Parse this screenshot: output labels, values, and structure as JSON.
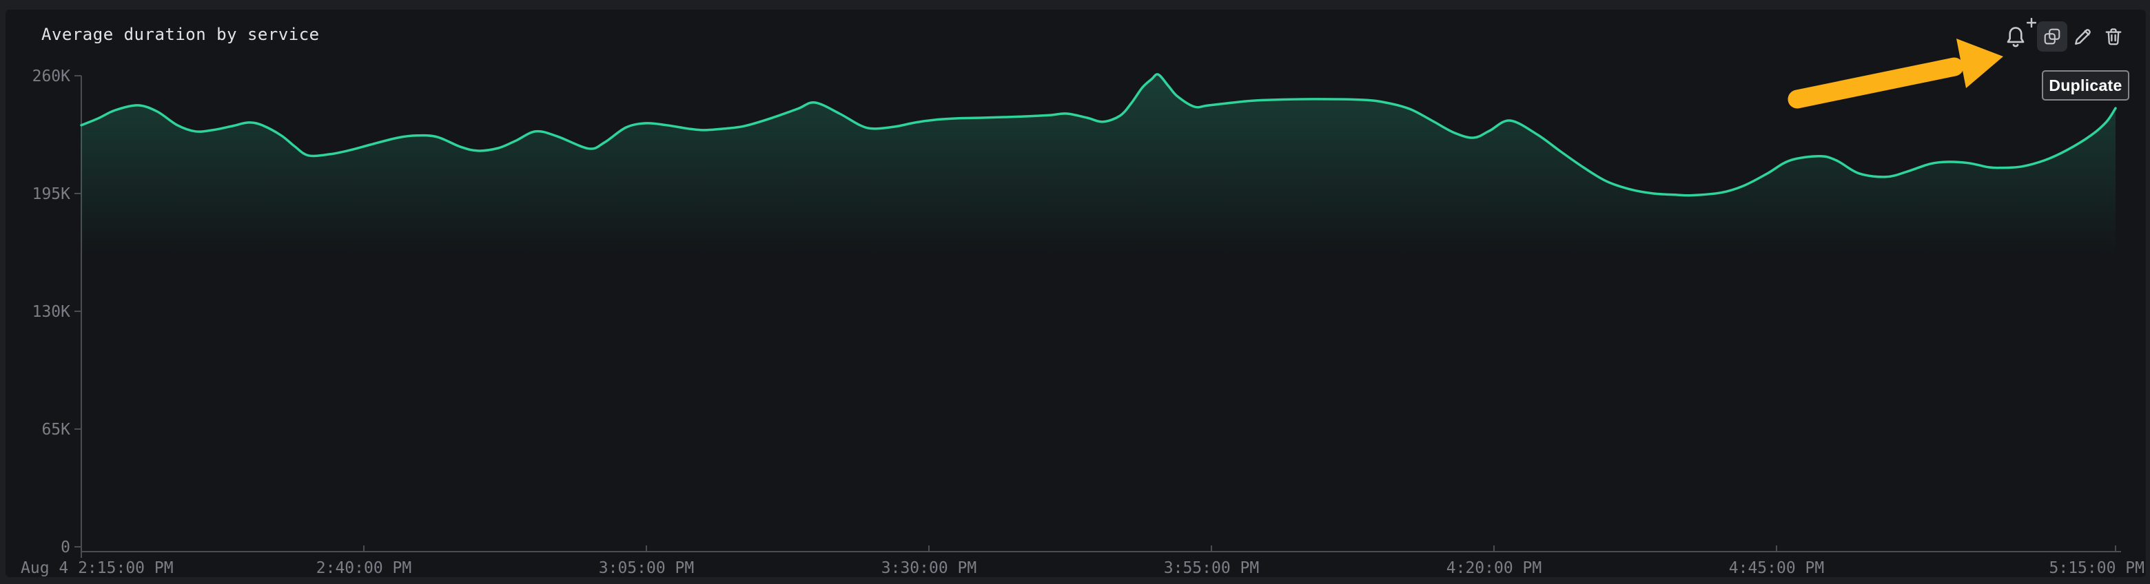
{
  "widget": {
    "title": "Average duration by service",
    "toolbar": {
      "buttons": [
        {
          "name": "add-alert",
          "icon": "bell-plus-icon"
        },
        {
          "name": "duplicate",
          "icon": "duplicate-icon",
          "hovered": true
        },
        {
          "name": "edit",
          "icon": "pencil-icon"
        },
        {
          "name": "delete",
          "icon": "trash-icon"
        }
      ]
    },
    "tooltip": {
      "label": "Duplicate"
    }
  },
  "annotation": {
    "type": "arrow",
    "color": "#fcb216",
    "points_at": "duplicate-button"
  },
  "colors": {
    "page_bg": "#1d1f23",
    "widget_bg": "#131519",
    "axis": "#4a4d53",
    "axis_label": "#7b7f85",
    "line": "#2fd49a",
    "title": "#e2e4e7",
    "icon": "#c6c8cb",
    "tooltip_bg": "#202226",
    "tooltip_border": "#85878a",
    "arrow": "#fcb216"
  },
  "chart_data": {
    "type": "line",
    "title": "Average duration by service",
    "xlabel": "",
    "ylabel": "",
    "grid": false,
    "legend": false,
    "x_unit": "minutes after Aug 4 2:15:00 PM",
    "xlim_minutes": [
      0,
      180
    ],
    "ylim": [
      0,
      260000
    ],
    "y_ticks": [
      {
        "v": 260000,
        "label": "260K"
      },
      {
        "v": 195000,
        "label": "195K"
      },
      {
        "v": 130000,
        "label": "130K"
      },
      {
        "v": 65000,
        "label": "65K"
      },
      {
        "v": 0,
        "label": "0"
      }
    ],
    "x_ticks": [
      {
        "t": 0,
        "label": "Aug 4 2:15:00 PM",
        "align": "left",
        "tick": false
      },
      {
        "t": 25,
        "label": "2:40:00 PM",
        "align": "center",
        "tick": true
      },
      {
        "t": 50,
        "label": "3:05:00 PM",
        "align": "center",
        "tick": true
      },
      {
        "t": 75,
        "label": "3:30:00 PM",
        "align": "center",
        "tick": true
      },
      {
        "t": 100,
        "label": "3:55:00 PM",
        "align": "center",
        "tick": true
      },
      {
        "t": 125,
        "label": "4:20:00 PM",
        "align": "center",
        "tick": true
      },
      {
        "t": 150,
        "label": "4:45:00 PM",
        "align": "center",
        "tick": true
      },
      {
        "t": 180,
        "label": "5:15:00 PM",
        "align": "right",
        "tick": true
      }
    ],
    "series": [
      {
        "name": "avg duration by service",
        "color": "#2fd49a",
        "points": [
          [
            0,
            232700
          ],
          [
            1.5,
            236500
          ],
          [
            3,
            241000
          ],
          [
            5,
            243700
          ],
          [
            6.7,
            240300
          ],
          [
            8.5,
            232700
          ],
          [
            10.1,
            229300
          ],
          [
            11.6,
            230000
          ],
          [
            13.4,
            232300
          ],
          [
            14.8,
            234200
          ],
          [
            16,
            232700
          ],
          [
            17.7,
            227000
          ],
          [
            18.9,
            220900
          ],
          [
            20.1,
            216000
          ],
          [
            22,
            216700
          ],
          [
            23.8,
            219000
          ],
          [
            25.6,
            222000
          ],
          [
            28,
            225800
          ],
          [
            29.7,
            227000
          ],
          [
            31.5,
            226200
          ],
          [
            33.5,
            220900
          ],
          [
            35.1,
            218600
          ],
          [
            36.9,
            220100
          ],
          [
            38.4,
            224000
          ],
          [
            40.2,
            229300
          ],
          [
            42.1,
            226600
          ],
          [
            44.9,
            219800
          ],
          [
            46.3,
            223200
          ],
          [
            48.2,
            231500
          ],
          [
            50,
            233800
          ],
          [
            51.8,
            232700
          ],
          [
            53.7,
            230800
          ],
          [
            55.1,
            230000
          ],
          [
            56.9,
            230800
          ],
          [
            58.7,
            232300
          ],
          [
            61,
            236500
          ],
          [
            63.4,
            241800
          ],
          [
            64.9,
            245200
          ],
          [
            67.1,
            239100
          ],
          [
            68.9,
            232700
          ],
          [
            70.1,
            230800
          ],
          [
            72,
            231900
          ],
          [
            73.8,
            234200
          ],
          [
            75.6,
            235700
          ],
          [
            77.6,
            236500
          ],
          [
            79.7,
            236800
          ],
          [
            81.7,
            237200
          ],
          [
            83.7,
            237600
          ],
          [
            85.8,
            238300
          ],
          [
            87.2,
            239100
          ],
          [
            89,
            236800
          ],
          [
            90.4,
            234600
          ],
          [
            91.9,
            237900
          ],
          [
            92.9,
            244800
          ],
          [
            93.9,
            253600
          ],
          [
            94.7,
            258100
          ],
          [
            95.3,
            260700
          ],
          [
            96.2,
            254300
          ],
          [
            97,
            248600
          ],
          [
            98.5,
            242900
          ],
          [
            99.8,
            243700
          ],
          [
            103.2,
            246000
          ],
          [
            105.3,
            246700
          ],
          [
            109.3,
            247100
          ],
          [
            113.4,
            246700
          ],
          [
            115.4,
            245200
          ],
          [
            117.5,
            241800
          ],
          [
            119.5,
            235300
          ],
          [
            121.5,
            228500
          ],
          [
            123.2,
            225800
          ],
          [
            124.6,
            229600
          ],
          [
            126.4,
            235300
          ],
          [
            128.8,
            227700
          ],
          [
            130.9,
            218200
          ],
          [
            132.9,
            209500
          ],
          [
            134.9,
            201900
          ],
          [
            137,
            197400
          ],
          [
            139,
            195100
          ],
          [
            141,
            194300
          ],
          [
            142.5,
            194000
          ],
          [
            145.1,
            195500
          ],
          [
            147.1,
            199300
          ],
          [
            149.2,
            206100
          ],
          [
            151.2,
            213300
          ],
          [
            153.8,
            215600
          ],
          [
            155.3,
            213300
          ],
          [
            157.3,
            206100
          ],
          [
            159.7,
            204200
          ],
          [
            161.6,
            207200
          ],
          [
            163.6,
            211400
          ],
          [
            165.2,
            212500
          ],
          [
            167,
            211800
          ],
          [
            168.8,
            209500
          ],
          [
            169.9,
            209200
          ],
          [
            171.7,
            209900
          ],
          [
            173.7,
            213300
          ],
          [
            175.7,
            219000
          ],
          [
            177.8,
            227000
          ],
          [
            179.2,
            234600
          ],
          [
            180,
            242100
          ]
        ]
      }
    ]
  }
}
